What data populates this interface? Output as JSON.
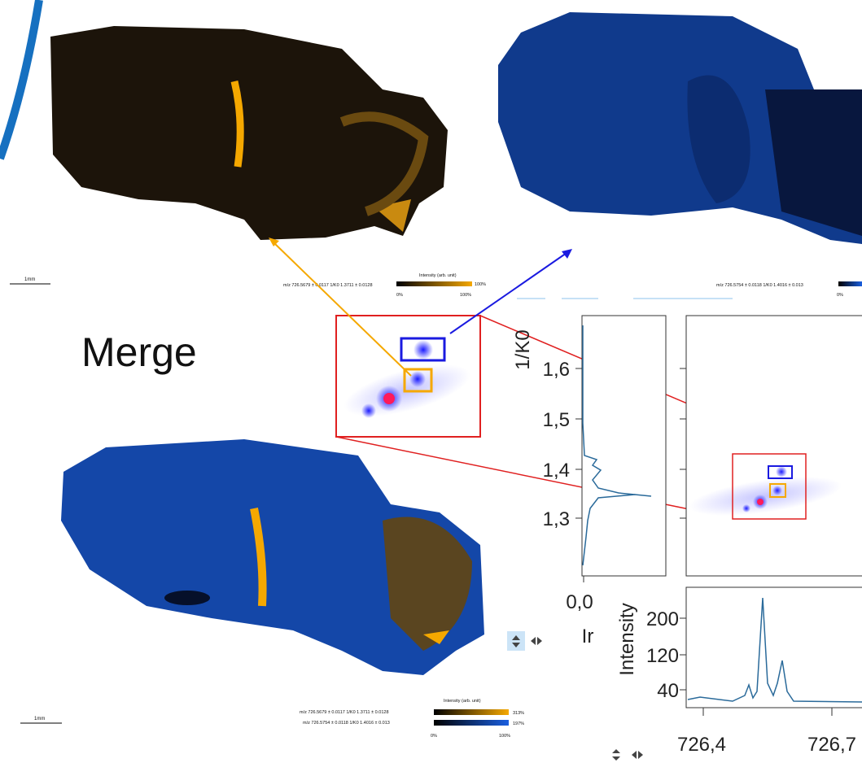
{
  "merge_label": "Merge",
  "top_left": {
    "scale_bar": "1mm",
    "legend_title": "Intensity (arb. unit)",
    "legend_label": "m/z 726.5679 ± 0.0117 1/K0 1.3711 ± 0.0128",
    "legend_min": "0%",
    "legend_max": "100%",
    "legend_end": "100%"
  },
  "top_right": {
    "legend_label": "m/z 726.5754 ± 0.0118 1/K0 1.4016 ± 0.013",
    "legend_min": "0%"
  },
  "bottom": {
    "scale_bar": "1mm",
    "legend_title": "Intensity (arb. unit)",
    "legend_rows": [
      {
        "label": "m/z 726.5679 ± 0.0117 1/K0 1.3711 ± 0.0128",
        "end": "313%"
      },
      {
        "label": "m/z 726.5754 ± 0.0118 1/K0 1.4016 ± 0.013",
        "end": "197%"
      }
    ],
    "legend_min": "0%",
    "legend_max": "100%"
  },
  "plots": {
    "y_axis_title": "1/K0",
    "y_ticks": [
      "1,6",
      "1,5",
      "1,4",
      "1,3"
    ],
    "mobilogram_x_tick": "0,0",
    "mobilogram_x_title": "Ir",
    "spectrum_y_title": "Intensity",
    "spectrum_y_ticks": [
      "200",
      "120",
      "40"
    ],
    "x_ticks": [
      "726,4",
      "726,7"
    ]
  }
}
